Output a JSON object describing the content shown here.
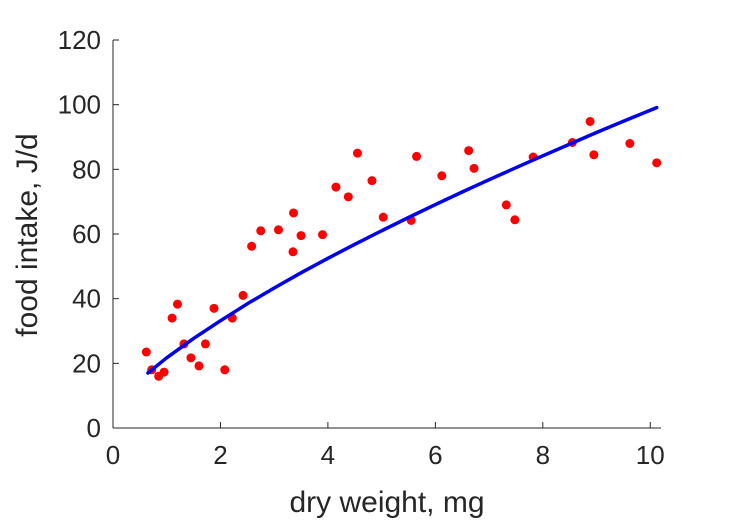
{
  "chart_data": {
    "type": "scatter",
    "xlabel": "dry weight, mg",
    "ylabel": "food intake, J/d",
    "xlim": [
      0,
      10.2
    ],
    "ylim": [
      0,
      120
    ],
    "xticks": [
      0,
      2,
      4,
      6,
      8,
      10
    ],
    "yticks": [
      0,
      20,
      40,
      60,
      80,
      100,
      120
    ],
    "grid": false,
    "series": [
      {
        "kind": "points",
        "color": "#ff0000",
        "points": [
          [
            0.62,
            23.5
          ],
          [
            0.72,
            18
          ],
          [
            0.85,
            16
          ],
          [
            0.95,
            17.3
          ],
          [
            1.1,
            34
          ],
          [
            1.2,
            38.3
          ],
          [
            1.32,
            26
          ],
          [
            1.45,
            21.7
          ],
          [
            1.6,
            19.2
          ],
          [
            1.72,
            26
          ],
          [
            1.88,
            37
          ],
          [
            2.08,
            18
          ],
          [
            2.22,
            34
          ],
          [
            2.42,
            41
          ],
          [
            2.58,
            56.2
          ],
          [
            2.75,
            61
          ],
          [
            3.08,
            61.3
          ],
          [
            3.35,
            54.5
          ],
          [
            3.36,
            66.5
          ],
          [
            3.5,
            59.5
          ],
          [
            3.9,
            59.8
          ],
          [
            4.15,
            74.5
          ],
          [
            4.38,
            71.5
          ],
          [
            4.55,
            85
          ],
          [
            4.82,
            76.5
          ],
          [
            5.03,
            65.2
          ],
          [
            5.55,
            64.2
          ],
          [
            5.65,
            84
          ],
          [
            6.12,
            78
          ],
          [
            6.62,
            85.8
          ],
          [
            6.72,
            80.3
          ],
          [
            7.32,
            69
          ],
          [
            7.48,
            64.4
          ],
          [
            7.82,
            83.8
          ],
          [
            8.55,
            88.3
          ],
          [
            8.88,
            94.8
          ],
          [
            8.95,
            84.5
          ],
          [
            9.62,
            88
          ],
          [
            10.12,
            82
          ]
        ]
      },
      {
        "kind": "fit-line",
        "color": "#0000ee",
        "points": [
          [
            0.65,
            17
          ],
          [
            1,
            21.7
          ],
          [
            1.5,
            27.7
          ],
          [
            2,
            33.2
          ],
          [
            2.5,
            38.4
          ],
          [
            3,
            43.3
          ],
          [
            3.5,
            48
          ],
          [
            4,
            52.5
          ],
          [
            4.5,
            56.8
          ],
          [
            5,
            61
          ],
          [
            5.5,
            65.1
          ],
          [
            6,
            69.1
          ],
          [
            6.5,
            73
          ],
          [
            7,
            76.8
          ],
          [
            7.5,
            80.5
          ],
          [
            8,
            84.2
          ],
          [
            8.5,
            87.8
          ],
          [
            9,
            91.4
          ],
          [
            9.5,
            94.9
          ],
          [
            10,
            98.3
          ],
          [
            10.12,
            99.1
          ]
        ]
      }
    ]
  }
}
